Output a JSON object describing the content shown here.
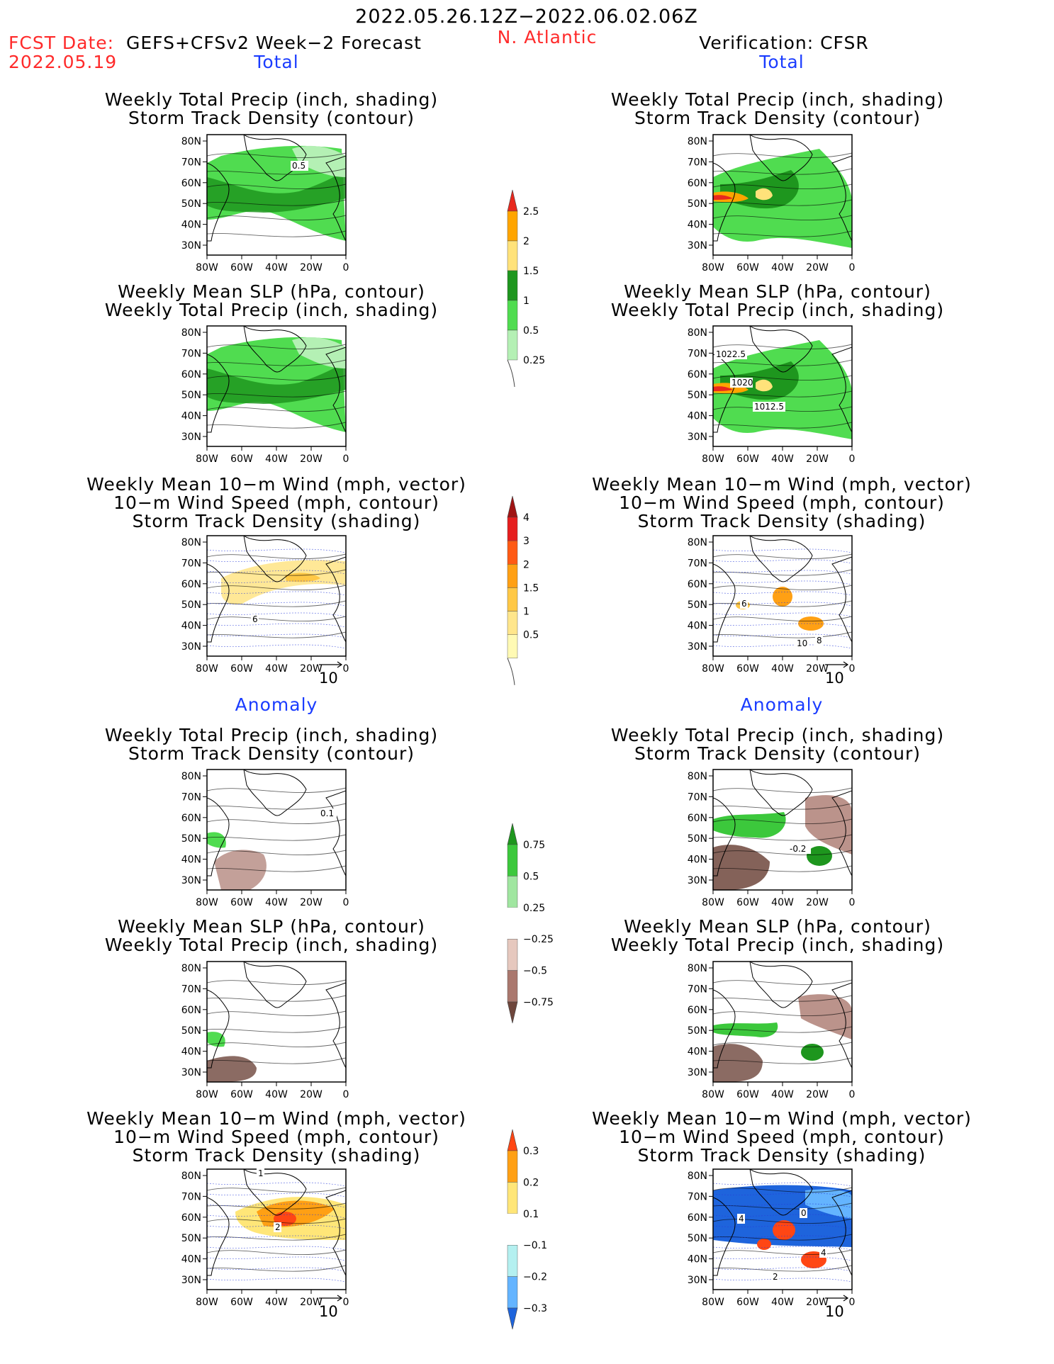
{
  "header": {
    "date_range": "2022.05.26.12Z−2022.06.02.06Z",
    "fcst_label": "FCST Date:",
    "fcst_model": "GEFS+CFSv2 Week−2 Forecast",
    "fcst_date": "2022.05.19",
    "region": "N. Atlantic",
    "verification": "Verification: CFSR"
  },
  "sections": {
    "total": "Total",
    "anomaly": "Anomaly"
  },
  "titles": {
    "precip_storm": [
      "Weekly Total Precip (inch, shading)",
      "Storm Track Density (contour)"
    ],
    "slp_precip": [
      "Weekly Mean SLP (hPa, contour)",
      "Weekly Total Precip (inch, shading)"
    ],
    "wind_storm": [
      "Weekly Mean 10−m Wind (mph, vector)",
      "10−m Wind Speed (mph, contour)",
      "Storm Track Density (shading)"
    ]
  },
  "axes": {
    "lat": [
      "80N",
      "70N",
      "60N",
      "50N",
      "40N",
      "30N"
    ],
    "lon": [
      "80W",
      "60W",
      "40W",
      "20W",
      "0"
    ]
  },
  "vector_ref": "10",
  "contour_labels": {
    "fcst_precip_storm": [
      "0.5"
    ],
    "cfsr_slp": [
      "1022.5",
      "1020",
      "1012.5"
    ],
    "fcst_wind": [
      "6"
    ],
    "cfsr_wind": [
      "10",
      "8",
      "6"
    ],
    "fcst_anom_precip_storm": [
      "0.1"
    ],
    "cfsr_anom_precip_storm": [
      "-0.2"
    ],
    "fcst_anom_wind": [
      "2",
      "1"
    ],
    "cfsr_anom_wind": [
      "4",
      "0",
      "4",
      "2"
    ]
  },
  "colorbars": {
    "precip": {
      "labels": [
        "2.5",
        "2",
        "1.5",
        "1",
        "0.5",
        "0.25"
      ],
      "colors": [
        "#e8281e",
        "#ffa500",
        "#ffe27a",
        "#1e961e",
        "#50dc50",
        "#b4f0b4"
      ]
    },
    "storm_density": {
      "labels": [
        "4",
        "3",
        "2",
        "1.5",
        "1",
        "0.5"
      ],
      "colors": [
        "#a01414",
        "#e61e1e",
        "#ff5a14",
        "#ffa014",
        "#ffc846",
        "#ffe68c",
        "#fffab4"
      ]
    },
    "precip_anom": {
      "labels": [
        "0.75",
        "0.5",
        "0.25",
        "−0.25",
        "−0.5",
        "−0.75"
      ],
      "colors": [
        "#1e961e",
        "#3cc83c",
        "#a0e6a0",
        "#ffffff",
        "#e6c8be",
        "#aa786e",
        "#6e463c"
      ]
    },
    "storm_anom": {
      "labels": [
        "0.3",
        "0.2",
        "0.1",
        "−0.1",
        "−0.2",
        "−0.3"
      ],
      "colors": [
        "#ff4614",
        "#ffa014",
        "#ffe678",
        "#ffffff",
        "#b4f0f0",
        "#64b4ff",
        "#1e64dc"
      ]
    }
  }
}
